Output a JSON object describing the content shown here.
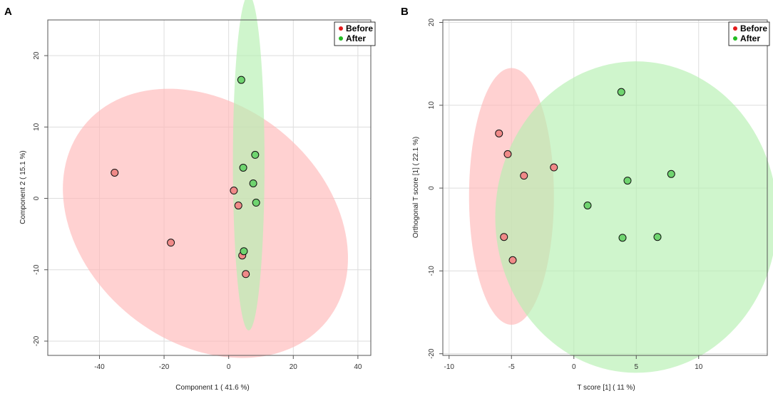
{
  "colors": {
    "before_fill": "#f08a88",
    "before_ellipse": "#ffb8b8",
    "after_fill": "#6fd46f",
    "after_ellipse": "#b6f0b0",
    "legend_before": "#e31a1c",
    "legend_after": "#22bb22",
    "grid": "#dddddd"
  },
  "chart_data": [
    {
      "panel": "A",
      "type": "scatter",
      "title": "",
      "xlabel": "Component 1 ( 41.6 %)",
      "ylabel": "Component 2 ( 15.1 %)",
      "xlim": [
        -56,
        44
      ],
      "ylim": [
        -22,
        25
      ],
      "xticks": [
        -40,
        -20,
        0,
        20,
        40
      ],
      "xtick_labels": [
        "-40",
        "-20",
        "0",
        "20",
        "40"
      ],
      "yticks": [
        -20,
        -10,
        0,
        10,
        20
      ],
      "ytick_labels": [
        "-20",
        "-10",
        "0",
        "10",
        "20"
      ],
      "grid": true,
      "legend": {
        "position": "top-right",
        "entries": [
          "Before",
          "After"
        ]
      },
      "series": [
        {
          "name": "Before",
          "color_key": "before",
          "points": [
            [
              -35.3,
              3.6
            ],
            [
              -17.9,
              -6.2
            ],
            [
              1.6,
              1.1
            ],
            [
              3.0,
              -1.0
            ],
            [
              4.2,
              -8.0
            ],
            [
              5.3,
              -10.6
            ]
          ],
          "ellipse": {
            "cx": -7.2,
            "cy": -3.5,
            "rx": 40,
            "ry": 17.5,
            "angle_deg": -20
          }
        },
        {
          "name": "After",
          "color_key": "after",
          "points": [
            [
              3.9,
              16.6
            ],
            [
              8.2,
              6.1
            ],
            [
              4.5,
              4.3
            ],
            [
              7.6,
              2.1
            ],
            [
              8.5,
              -0.6
            ],
            [
              4.7,
              -7.4
            ]
          ],
          "ellipse": {
            "cx": 6.2,
            "cy": 5.0,
            "rx": 4.9,
            "ry": 23.5,
            "angle_deg": 0
          }
        }
      ]
    },
    {
      "panel": "B",
      "type": "scatter",
      "title": "",
      "xlabel": "T score [1] ( 11 %)",
      "ylabel": "Orthogonal T score [1] ( 22.1 %)",
      "xlim": [
        -10.5,
        15.5
      ],
      "ylim": [
        -20.2,
        20.3
      ],
      "xticks": [
        -10,
        -5,
        0,
        5,
        10
      ],
      "xtick_labels": [
        "-10",
        "-5",
        "0",
        "5",
        "10"
      ],
      "yticks": [
        -20,
        -10,
        0,
        10,
        20
      ],
      "ytick_labels": [
        "-20",
        "-10",
        "0",
        "10",
        "20"
      ],
      "grid": true,
      "legend": {
        "position": "top-right",
        "entries": [
          "Before",
          "After"
        ]
      },
      "series": [
        {
          "name": "Before",
          "color_key": "before",
          "points": [
            [
              -6.0,
              6.6
            ],
            [
              -5.3,
              4.1
            ],
            [
              -4.0,
              1.5
            ],
            [
              -1.6,
              2.5
            ],
            [
              -5.6,
              -5.9
            ],
            [
              -4.9,
              -8.7
            ]
          ],
          "ellipse": {
            "cx": -5.0,
            "cy": -1.0,
            "rx": 3.4,
            "ry": 15.5,
            "angle_deg": 0
          }
        },
        {
          "name": "After",
          "color_key": "after",
          "points": [
            [
              3.8,
              11.6
            ],
            [
              7.8,
              1.7
            ],
            [
              4.3,
              0.9
            ],
            [
              1.1,
              -2.1
            ],
            [
              3.9,
              -6.0
            ],
            [
              6.7,
              -5.9
            ]
          ],
          "ellipse": {
            "cx": 5.0,
            "cy": -3.5,
            "rx": 11.3,
            "ry": 18.8,
            "angle_deg": 0
          }
        }
      ]
    }
  ]
}
